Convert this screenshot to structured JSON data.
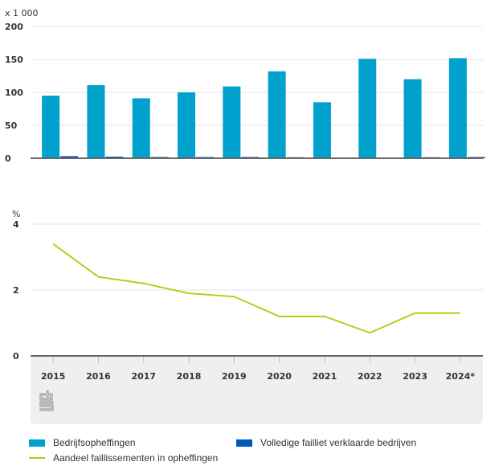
{
  "chart_data": [
    {
      "type": "bar",
      "title": "",
      "unit_label": "x 1 000",
      "xlabel": "",
      "ylabel": "",
      "ylim": [
        0,
        200
      ],
      "yticks": [
        0,
        50,
        100,
        150,
        200
      ],
      "grid": true,
      "categories": [
        "2015",
        "2016",
        "2017",
        "2018",
        "2019",
        "2020",
        "2021",
        "2022",
        "2023",
        "2024*"
      ],
      "series": [
        {
          "name": "Bedrijfsopheffingen",
          "color": "#00a1cd",
          "values": [
            95,
            111,
            91,
            100,
            109,
            132,
            85,
            151,
            120,
            152
          ]
        },
        {
          "name": "Volledige failliet verklaarde bedrijven",
          "color": "#0058b8",
          "values": [
            3.2,
            2.5,
            2.0,
            1.9,
            2.0,
            1.6,
            1.0,
            1.1,
            1.6,
            2.0
          ]
        }
      ]
    },
    {
      "type": "line",
      "title": "",
      "unit_label": "%",
      "xlabel": "",
      "ylabel": "",
      "ylim": [
        0,
        4
      ],
      "yticks": [
        0,
        2,
        4
      ],
      "grid": true,
      "categories": [
        "2015",
        "2016",
        "2017",
        "2018",
        "2019",
        "2020",
        "2021",
        "2022",
        "2023",
        "2024*"
      ],
      "series": [
        {
          "name": "Aandeel faillissementen in opheffingen",
          "color": "#afcb05",
          "values": [
            3.4,
            2.4,
            2.2,
            1.9,
            1.8,
            1.2,
            1.2,
            0.7,
            1.3,
            1.3
          ]
        }
      ]
    }
  ],
  "x_tick_labels": [
    "2015",
    "2016",
    "2017",
    "2018",
    "2019",
    "2020",
    "2021",
    "2022",
    "2023",
    "2024*"
  ],
  "legend": {
    "placement": "bottom",
    "items": [
      {
        "label": "Bedrijfsopheffingen",
        "kind": "box",
        "color": "#00a1cd"
      },
      {
        "label": "Volledige failliet verklaarde bedrijven",
        "kind": "box",
        "color": "#0058b8"
      },
      {
        "label": "Aandeel faillissementen in opheffingen",
        "kind": "line",
        "color": "#afcb05"
      }
    ]
  },
  "logo": {
    "name": "cbs-logo",
    "text": "cbs"
  }
}
